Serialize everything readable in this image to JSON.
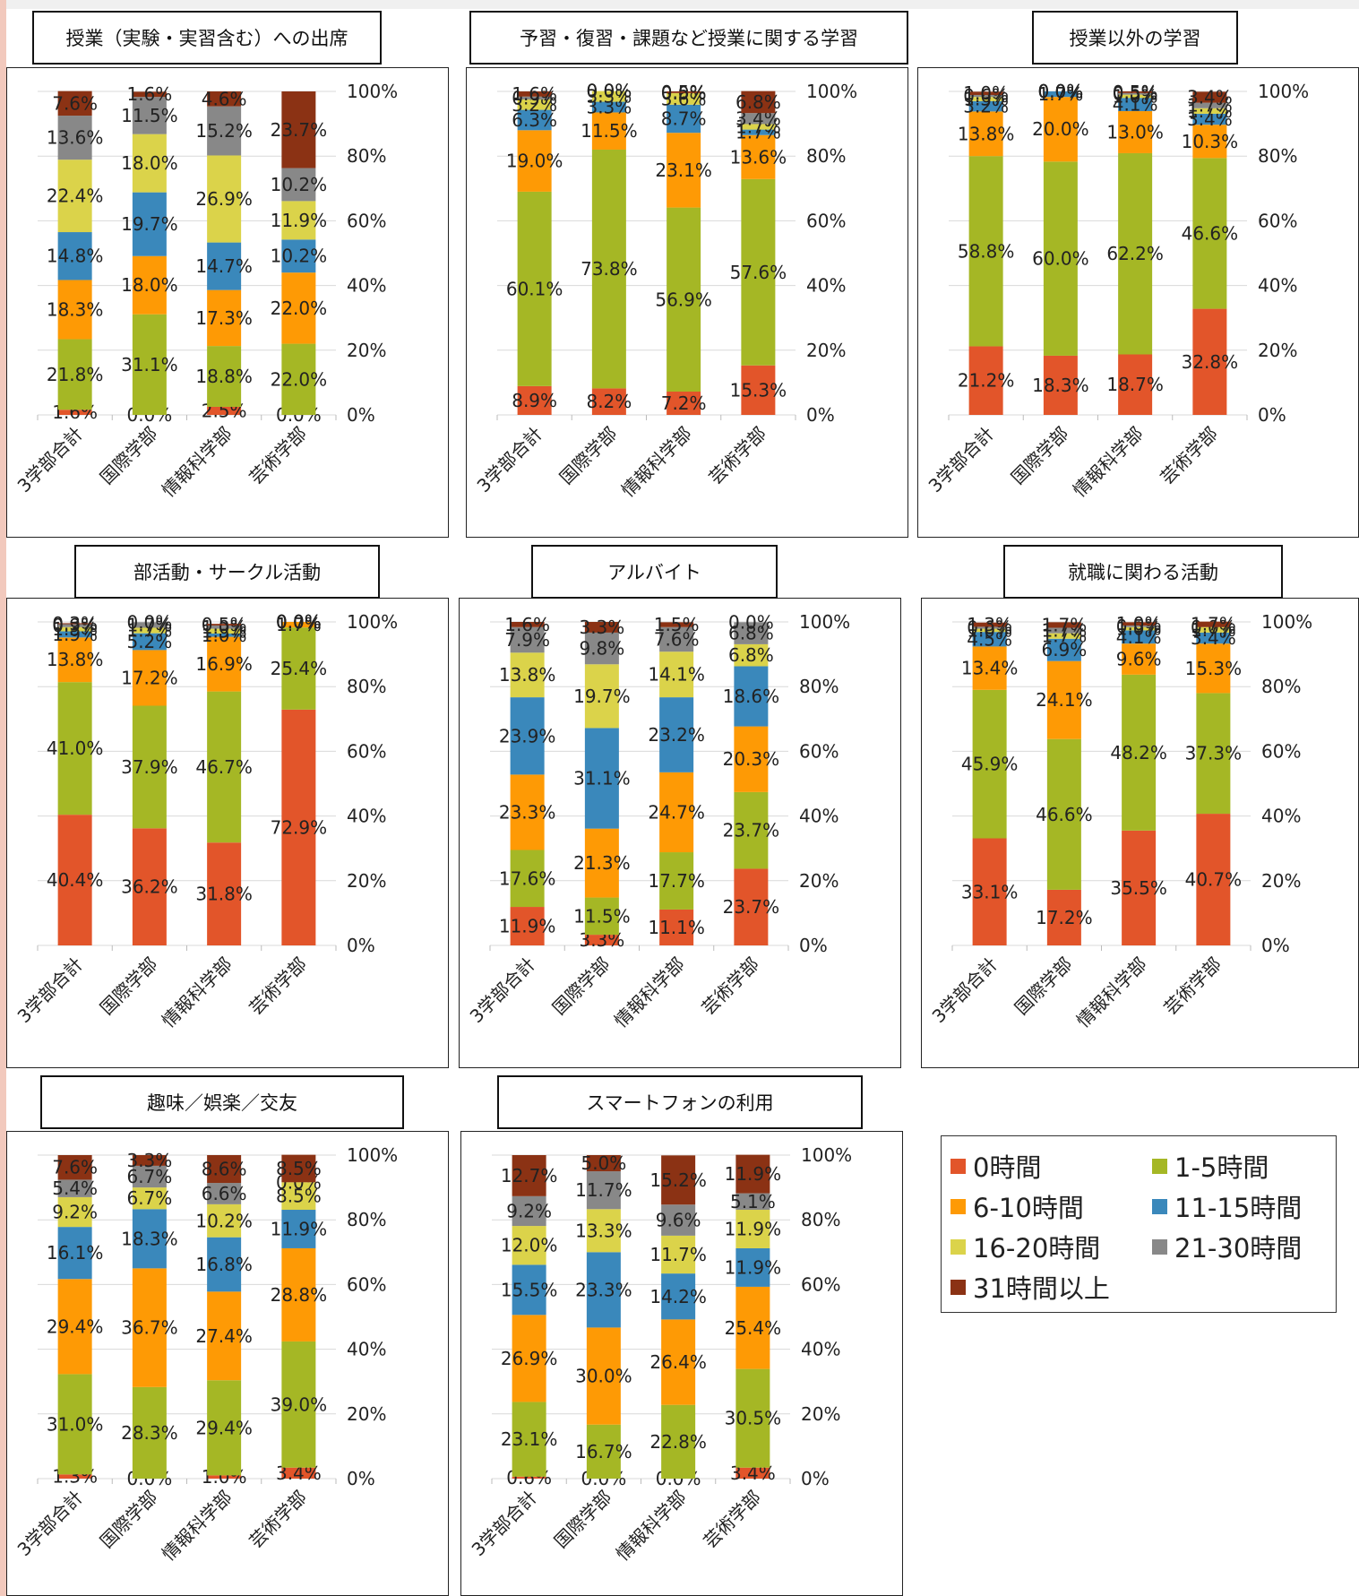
{
  "legend": {
    "items": [
      {
        "label": "0時間",
        "color": "#e2552a"
      },
      {
        "label": "1-5時間",
        "color": "#a5b725"
      },
      {
        "label": "6-10時間",
        "color": "#fe9a05"
      },
      {
        "label": "11-15時間",
        "color": "#3a88bb"
      },
      {
        "label": "16-20時間",
        "color": "#dbd34a"
      },
      {
        "label": "21-30時間",
        "color": "#888888"
      },
      {
        "label": "31時間以上",
        "color": "#8b3214"
      }
    ]
  },
  "chart_data": [
    {
      "type": "bar",
      "stacked": true,
      "title": "授業（実験・実習含む）への出席",
      "categories": [
        "3学部合計",
        "国際学部",
        "情報科学部",
        "芸術学部"
      ],
      "yticks": [
        "0%",
        "20%",
        "40%",
        "60%",
        "80%",
        "100%"
      ],
      "series": [
        {
          "name": "0時間",
          "values": [
            1.6,
            0.0,
            2.5,
            0.0
          ]
        },
        {
          "name": "1-5時間",
          "values": [
            21.8,
            31.1,
            18.8,
            22.0
          ]
        },
        {
          "name": "6-10時間",
          "values": [
            18.3,
            18.0,
            17.3,
            22.0
          ]
        },
        {
          "name": "11-15時間",
          "values": [
            14.8,
            19.7,
            14.7,
            10.2
          ]
        },
        {
          "name": "16-20時間",
          "values": [
            22.4,
            18.0,
            26.9,
            11.9
          ]
        },
        {
          "name": "21-30時間",
          "values": [
            13.6,
            11.5,
            15.2,
            10.2
          ]
        },
        {
          "name": "31時間以上",
          "values": [
            7.6,
            1.6,
            4.6,
            23.7
          ]
        }
      ]
    },
    {
      "type": "bar",
      "stacked": true,
      "title": "予習・復習・課題など授業に関する学習",
      "categories": [
        "3学部合計",
        "国際学部",
        "情報科学部",
        "芸術学部"
      ],
      "yticks": [
        "0%",
        "20%",
        "40%",
        "60%",
        "80%",
        "100%"
      ],
      "series": [
        {
          "name": "0時間",
          "values": [
            8.9,
            8.2,
            7.2,
            15.3
          ]
        },
        {
          "name": "1-5時間",
          "values": [
            60.1,
            73.8,
            56.9,
            57.6
          ]
        },
        {
          "name": "6-10時間",
          "values": [
            19.0,
            11.5,
            23.1,
            13.6
          ]
        },
        {
          "name": "11-15時間",
          "values": [
            6.3,
            3.3,
            8.7,
            1.7
          ]
        },
        {
          "name": "16-20時間",
          "values": [
            3.2,
            3.3,
            3.6,
            1.7
          ]
        },
        {
          "name": "21-30時間",
          "values": [
            0.9,
            0.0,
            0.0,
            3.4
          ]
        },
        {
          "name": "31時間以上",
          "values": [
            1.6,
            0.0,
            0.5,
            6.8
          ]
        }
      ]
    },
    {
      "type": "bar",
      "stacked": true,
      "title": "授業以外の学習",
      "categories": [
        "3学部合計",
        "国際学部",
        "情報科学部",
        "芸術学部"
      ],
      "yticks": [
        "0%",
        "20%",
        "40%",
        "60%",
        "80%",
        "100%"
      ],
      "series": [
        {
          "name": "0時間",
          "values": [
            21.2,
            18.3,
            18.7,
            32.8
          ]
        },
        {
          "name": "1-5時間",
          "values": [
            58.8,
            60.0,
            62.2,
            46.6
          ]
        },
        {
          "name": "6-10時間",
          "values": [
            13.8,
            20.0,
            13.0,
            10.3
          ]
        },
        {
          "name": "11-15時間",
          "values": [
            3.2,
            1.7,
            4.1,
            3.4
          ]
        },
        {
          "name": "16-20時間",
          "values": [
            1.3,
            0.0,
            1.0,
            1.7
          ]
        },
        {
          "name": "21-30時間",
          "values": [
            0.6,
            0.0,
            0.5,
            1.7
          ]
        },
        {
          "name": "31時間以上",
          "values": [
            1.0,
            0.0,
            0.5,
            3.4
          ]
        }
      ]
    },
    {
      "type": "bar",
      "stacked": true,
      "title": "部活動・サークル活動",
      "categories": [
        "3学部合計",
        "国際学部",
        "情報科学部",
        "芸術学部"
      ],
      "yticks": [
        "0%",
        "20%",
        "40%",
        "60%",
        "80%",
        "100%"
      ],
      "series": [
        {
          "name": "0時間",
          "values": [
            40.4,
            36.2,
            31.8,
            72.9
          ]
        },
        {
          "name": "1-5時間",
          "values": [
            41.0,
            37.9,
            46.7,
            25.4
          ]
        },
        {
          "name": "6-10時間",
          "values": [
            13.8,
            17.2,
            16.9,
            1.7
          ]
        },
        {
          "name": "11-15時間",
          "values": [
            1.9,
            5.2,
            1.0,
            0.0
          ]
        },
        {
          "name": "16-20時間",
          "values": [
            1.3,
            1.7,
            1.5,
            0.0
          ]
        },
        {
          "name": "21-30時間",
          "values": [
            0.9,
            1.7,
            1.0,
            0.0
          ]
        },
        {
          "name": "31時間以上",
          "values": [
            0.3,
            0.0,
            0.5,
            0.0
          ]
        }
      ]
    },
    {
      "type": "bar",
      "stacked": true,
      "title": "アルバイト",
      "categories": [
        "3学部合計",
        "国際学部",
        "情報科学部",
        "芸術学部"
      ],
      "yticks": [
        "0%",
        "20%",
        "40%",
        "60%",
        "80%",
        "100%"
      ],
      "series": [
        {
          "name": "0時間",
          "values": [
            11.9,
            3.3,
            11.1,
            23.7
          ]
        },
        {
          "name": "1-5時間",
          "values": [
            17.6,
            11.5,
            17.7,
            23.7
          ]
        },
        {
          "name": "6-10時間",
          "values": [
            23.3,
            21.3,
            24.7,
            20.3
          ]
        },
        {
          "name": "11-15時間",
          "values": [
            23.9,
            31.1,
            23.2,
            18.6
          ]
        },
        {
          "name": "16-20時間",
          "values": [
            13.8,
            19.7,
            14.1,
            6.8
          ]
        },
        {
          "name": "21-30時間",
          "values": [
            7.9,
            9.8,
            7.6,
            6.8
          ]
        },
        {
          "name": "31時間以上",
          "values": [
            1.6,
            3.3,
            1.5,
            0.0
          ]
        }
      ]
    },
    {
      "type": "bar",
      "stacked": true,
      "title": "就職に関わる活動",
      "categories": [
        "3学部合計",
        "国際学部",
        "情報科学部",
        "芸術学部"
      ],
      "yticks": [
        "0%",
        "20%",
        "40%",
        "60%",
        "80%",
        "100%"
      ],
      "series": [
        {
          "name": "0時間",
          "values": [
            33.1,
            17.2,
            35.5,
            40.7
          ]
        },
        {
          "name": "1-5時間",
          "values": [
            45.9,
            46.6,
            48.2,
            37.3
          ]
        },
        {
          "name": "6-10時間",
          "values": [
            13.4,
            24.1,
            9.6,
            15.3
          ]
        },
        {
          "name": "11-15時間",
          "values": [
            4.5,
            6.9,
            4.1,
            3.4
          ]
        },
        {
          "name": "16-20時間",
          "values": [
            1.0,
            1.7,
            1.0,
            1.7
          ]
        },
        {
          "name": "21-30時間",
          "values": [
            0.6,
            1.7,
            0.5,
            0.0
          ]
        },
        {
          "name": "31時間以上",
          "values": [
            1.3,
            1.7,
            1.0,
            1.7
          ]
        }
      ]
    },
    {
      "type": "bar",
      "stacked": true,
      "title": "趣味／娯楽／交友",
      "categories": [
        "3学部合計",
        "国際学部",
        "情報科学部",
        "芸術学部"
      ],
      "yticks": [
        "0%",
        "20%",
        "40%",
        "60%",
        "80%",
        "100%"
      ],
      "series": [
        {
          "name": "0時間",
          "values": [
            1.3,
            0.0,
            1.0,
            3.4
          ]
        },
        {
          "name": "1-5時間",
          "values": [
            31.0,
            28.3,
            29.4,
            39.0
          ]
        },
        {
          "name": "6-10時間",
          "values": [
            29.4,
            36.7,
            27.4,
            28.8
          ]
        },
        {
          "name": "11-15時間",
          "values": [
            16.1,
            18.3,
            16.8,
            11.9
          ]
        },
        {
          "name": "16-20時間",
          "values": [
            9.2,
            6.7,
            10.2,
            8.5
          ]
        },
        {
          "name": "21-30時間",
          "values": [
            5.4,
            6.7,
            6.6,
            0.0
          ]
        },
        {
          "name": "31時間以上",
          "values": [
            7.6,
            3.3,
            8.6,
            8.5
          ]
        }
      ]
    },
    {
      "type": "bar",
      "stacked": true,
      "title": "スマートフォンの利用",
      "categories": [
        "3学部合計",
        "国際学部",
        "情報科学部",
        "芸術学部"
      ],
      "yticks": [
        "0%",
        "20%",
        "40%",
        "60%",
        "80%",
        "100%"
      ],
      "series": [
        {
          "name": "0時間",
          "values": [
            0.6,
            0.0,
            0.0,
            3.4
          ]
        },
        {
          "name": "1-5時間",
          "values": [
            23.1,
            16.7,
            22.8,
            30.5
          ]
        },
        {
          "name": "6-10時間",
          "values": [
            26.9,
            30.0,
            26.4,
            25.4
          ]
        },
        {
          "name": "11-15時間",
          "values": [
            15.5,
            23.3,
            14.2,
            11.9
          ]
        },
        {
          "name": "16-20時間",
          "values": [
            12.0,
            13.3,
            11.7,
            11.9
          ]
        },
        {
          "name": "21-30時間",
          "values": [
            9.2,
            11.7,
            9.6,
            5.1
          ]
        },
        {
          "name": "31時間以上",
          "values": [
            12.7,
            5.0,
            15.2,
            11.9
          ]
        }
      ]
    }
  ]
}
